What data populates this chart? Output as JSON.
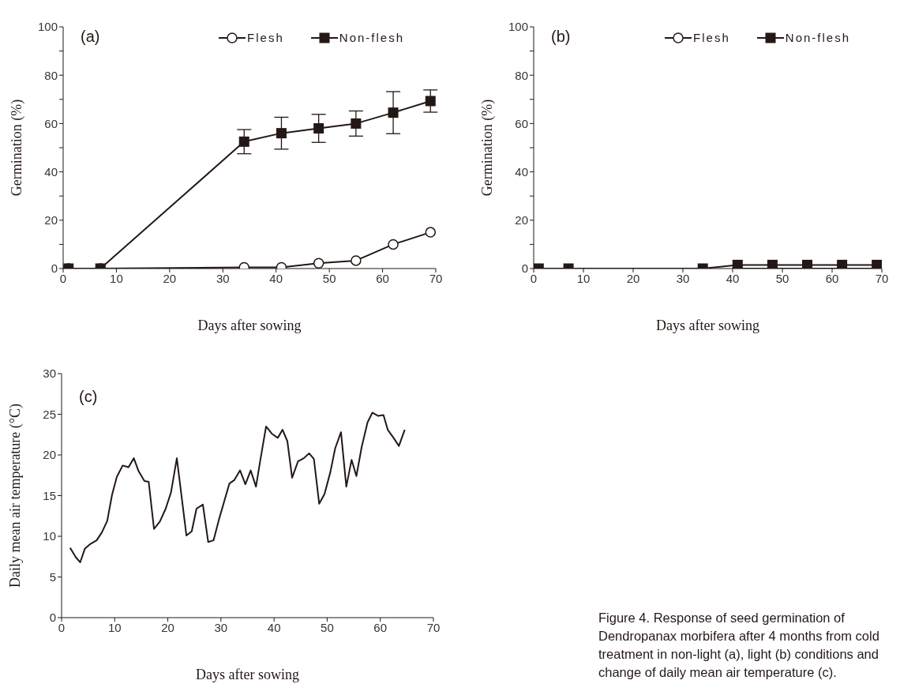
{
  "chart_data": [
    {
      "type": "line",
      "xlabel": "Days after sowing",
      "ylabel": "Germination (%)",
      "annotations": [
        "(a)"
      ],
      "xlim": [
        0,
        70
      ],
      "xticks": [
        0,
        10,
        20,
        30,
        40,
        50,
        60,
        70
      ],
      "ylim": [
        0,
        100
      ],
      "yticks": [
        0,
        {
          "value": 10,
          "label": null
        },
        20,
        {
          "value": 30,
          "label": null
        },
        40,
        {
          "value": 50,
          "label": null
        },
        60,
        {
          "value": 70,
          "label": null
        },
        80,
        {
          "value": 90,
          "label": null
        },
        100
      ],
      "legend": "top right",
      "x": [
        1,
        7,
        34,
        41,
        48,
        55,
        62,
        69
      ],
      "series": [
        {
          "name": "Flesh",
          "color": "#231815",
          "marker": "circle",
          "values": [
            0,
            0,
            0.5,
            0.5,
            2.2,
            3.3,
            10,
            15
          ]
        },
        {
          "name": "Non-flesh",
          "color": "#231815",
          "marker": "square",
          "values": [
            0,
            0,
            52.5,
            56,
            58,
            60,
            64.5,
            69.3
          ],
          "errors": [
            null,
            null,
            5,
            6.6,
            5.8,
            5.2,
            8.7,
            4.6
          ]
        }
      ]
    },
    {
      "type": "line",
      "xlabel": "Days after sowing",
      "ylabel": "Germination (%)",
      "annotations": [
        "(b)"
      ],
      "xlim": [
        0,
        70
      ],
      "xticks": [
        0,
        10,
        20,
        30,
        40,
        50,
        60,
        70
      ],
      "ylim": [
        0,
        100
      ],
      "yticks": [
        0,
        {
          "value": 10,
          "label": null
        },
        20,
        {
          "value": 30,
          "label": null
        },
        40,
        {
          "value": 50,
          "label": null
        },
        60,
        {
          "value": 70,
          "label": null
        },
        80,
        {
          "value": 90,
          "label": null
        },
        100
      ],
      "legend": "top right",
      "x": [
        1,
        7,
        34,
        41,
        48,
        55,
        62,
        69
      ],
      "series": [
        {
          "name": "Flesh",
          "color": "#231815",
          "marker": "circle",
          "x": [
            41,
            48,
            55,
            62,
            69
          ],
          "values": [
            0,
            0,
            0,
            0,
            0
          ]
        },
        {
          "name": "Non-flesh",
          "color": "#231815",
          "marker": "square",
          "values": [
            0,
            0,
            0,
            1.5,
            1.5,
            1.5,
            1.5,
            1.5
          ]
        }
      ]
    },
    {
      "type": "line",
      "xlabel": "Days after sowing",
      "ylabel": "Daily mean air temperature (°C)",
      "annotations": [
        "(c)",
        "Figure 4. Response of seed germination of Dendropanax morbifera after 4 months from cold treatment in non-light (a), light (b) conditions and change of daily mean air temperature (c)."
      ],
      "xlim": [
        0,
        70
      ],
      "xticks": [
        0,
        10,
        20,
        30,
        40,
        50,
        60,
        70
      ],
      "ylim": [
        0,
        30
      ],
      "yticks": [
        0,
        5,
        10,
        15,
        20,
        25,
        30
      ],
      "legend": false,
      "x": [
        1.6,
        2.7,
        3.5,
        4.4,
        5.5,
        6.6,
        7.6,
        8.6,
        9.5,
        10.4,
        11.5,
        12.6,
        13.6,
        14.5,
        15.6,
        16.4,
        17.4,
        18.5,
        19.6,
        20.6,
        21.7,
        23.5,
        24.5,
        25.4,
        26.6,
        27.6,
        28.6,
        29.6,
        31.6,
        32.5,
        33.6,
        34.6,
        35.6,
        36.6,
        37.4,
        38.5,
        39.6,
        40.7,
        41.6,
        42.5,
        43.4,
        44.5,
        45.6,
        46.6,
        47.5,
        48.5,
        49.5,
        50.6,
        51.5,
        52.6,
        53.6,
        54.6,
        55.5,
        56.5,
        57.6,
        58.5,
        59.6,
        60.6,
        61.4,
        62.5,
        63.5,
        64.6
      ],
      "series": [
        {
          "color": "#231815",
          "marker": "none",
          "values": [
            8.6,
            7.4,
            6.8,
            8.5,
            9.1,
            9.5,
            10.5,
            11.9,
            15.1,
            17.3,
            18.7,
            18.5,
            19.6,
            18.0,
            16.8,
            16.7,
            10.9,
            11.8,
            13.4,
            15.4,
            19.6,
            10.1,
            10.6,
            13.4,
            13.9,
            9.3,
            9.5,
            12.0,
            16.5,
            16.9,
            18.1,
            16.4,
            18.1,
            16.1,
            19.3,
            23.5,
            22.6,
            22.1,
            23.1,
            21.7,
            17.2,
            19.2,
            19.6,
            20.2,
            19.5,
            14.0,
            15.2,
            17.9,
            20.8,
            22.8,
            16.1,
            19.4,
            17.4,
            21.0,
            24.0,
            25.2,
            24.8,
            24.9,
            23.1,
            22.1,
            21.1,
            23.1
          ]
        }
      ]
    }
  ]
}
